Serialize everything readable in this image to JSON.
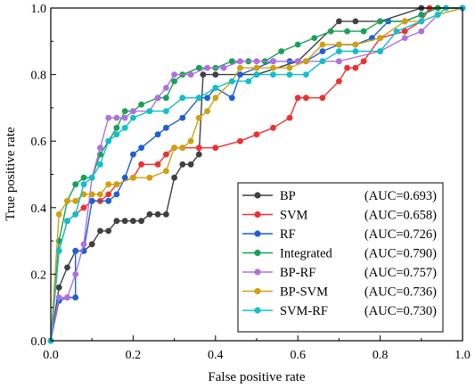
{
  "chart_data": {
    "type": "line",
    "xlabel": "False positive rate",
    "ylabel": "True positive rate",
    "xlim": [
      0,
      1
    ],
    "ylim": [
      0,
      1
    ],
    "x_ticks": [
      "0.0",
      "0.2",
      "0.4",
      "0.6",
      "0.8",
      "1.0"
    ],
    "y_ticks": [
      "0.0",
      "0.2",
      "0.4",
      "0.6",
      "0.8",
      "1.0"
    ],
    "grid": false,
    "legend_position": "bottom-right",
    "series": [
      {
        "name": "BP",
        "auc": "(AUC=0.693)",
        "color": "#404040",
        "points": [
          [
            0,
            0
          ],
          [
            0.02,
            0.16
          ],
          [
            0.04,
            0.22
          ],
          [
            0.06,
            0.27
          ],
          [
            0.08,
            0.27
          ],
          [
            0.1,
            0.29
          ],
          [
            0.12,
            0.33
          ],
          [
            0.14,
            0.33
          ],
          [
            0.16,
            0.36
          ],
          [
            0.18,
            0.36
          ],
          [
            0.2,
            0.36
          ],
          [
            0.22,
            0.36
          ],
          [
            0.24,
            0.38
          ],
          [
            0.26,
            0.38
          ],
          [
            0.28,
            0.38
          ],
          [
            0.3,
            0.49
          ],
          [
            0.32,
            0.53
          ],
          [
            0.34,
            0.53
          ],
          [
            0.36,
            0.56
          ],
          [
            0.37,
            0.8
          ],
          [
            0.4,
            0.8
          ],
          [
            0.5,
            0.8
          ],
          [
            0.6,
            0.84
          ],
          [
            0.7,
            0.96
          ],
          [
            0.74,
            0.96
          ],
          [
            0.8,
            0.96
          ],
          [
            0.9,
            1.0
          ],
          [
            1.0,
            1.0
          ]
        ]
      },
      {
        "name": "SVM",
        "auc": "(AUC=0.658)",
        "color": "#f03030",
        "points": [
          [
            0,
            0
          ],
          [
            0.02,
            0.27
          ],
          [
            0.04,
            0.36
          ],
          [
            0.06,
            0.38
          ],
          [
            0.08,
            0.4
          ],
          [
            0.1,
            0.42
          ],
          [
            0.12,
            0.42
          ],
          [
            0.14,
            0.44
          ],
          [
            0.16,
            0.47
          ],
          [
            0.2,
            0.49
          ],
          [
            0.22,
            0.53
          ],
          [
            0.26,
            0.53
          ],
          [
            0.28,
            0.56
          ],
          [
            0.3,
            0.58
          ],
          [
            0.32,
            0.58
          ],
          [
            0.36,
            0.58
          ],
          [
            0.4,
            0.58
          ],
          [
            0.46,
            0.6
          ],
          [
            0.5,
            0.62
          ],
          [
            0.54,
            0.64
          ],
          [
            0.58,
            0.67
          ],
          [
            0.6,
            0.73
          ],
          [
            0.62,
            0.73
          ],
          [
            0.66,
            0.73
          ],
          [
            0.7,
            0.78
          ],
          [
            0.72,
            0.82
          ],
          [
            0.74,
            0.82
          ],
          [
            0.76,
            0.84
          ],
          [
            0.8,
            0.91
          ],
          [
            0.86,
            0.93
          ],
          [
            0.9,
            0.96
          ],
          [
            0.92,
            1.0
          ],
          [
            1.0,
            1.0
          ]
        ]
      },
      {
        "name": "RF",
        "auc": "(AUC=0.726)",
        "color": "#1f5fd0",
        "points": [
          [
            0,
            0
          ],
          [
            0.02,
            0.12
          ],
          [
            0.04,
            0.13
          ],
          [
            0.06,
            0.13
          ],
          [
            0.06,
            0.27
          ],
          [
            0.08,
            0.27
          ],
          [
            0.1,
            0.42
          ],
          [
            0.14,
            0.42
          ],
          [
            0.16,
            0.44
          ],
          [
            0.18,
            0.49
          ],
          [
            0.2,
            0.56
          ],
          [
            0.22,
            0.58
          ],
          [
            0.26,
            0.62
          ],
          [
            0.28,
            0.64
          ],
          [
            0.32,
            0.67
          ],
          [
            0.36,
            0.73
          ],
          [
            0.38,
            0.73
          ],
          [
            0.4,
            0.76
          ],
          [
            0.44,
            0.73
          ],
          [
            0.46,
            0.8
          ],
          [
            0.5,
            0.82
          ],
          [
            0.54,
            0.84
          ],
          [
            0.58,
            0.84
          ],
          [
            0.62,
            0.84
          ],
          [
            0.66,
            0.87
          ],
          [
            0.7,
            0.89
          ],
          [
            0.74,
            0.89
          ],
          [
            0.78,
            0.91
          ],
          [
            0.82,
            0.96
          ],
          [
            0.86,
            0.96
          ],
          [
            0.9,
            0.98
          ],
          [
            0.94,
            1.0
          ],
          [
            1.0,
            1.0
          ]
        ]
      },
      {
        "name": "Integrated",
        "auc": "(AUC=0.790)",
        "color": "#18a058",
        "points": [
          [
            0,
            0
          ],
          [
            0.02,
            0.3
          ],
          [
            0.04,
            0.42
          ],
          [
            0.06,
            0.47
          ],
          [
            0.08,
            0.49
          ],
          [
            0.1,
            0.49
          ],
          [
            0.12,
            0.56
          ],
          [
            0.14,
            0.6
          ],
          [
            0.16,
            0.64
          ],
          [
            0.18,
            0.69
          ],
          [
            0.2,
            0.69
          ],
          [
            0.22,
            0.71
          ],
          [
            0.26,
            0.73
          ],
          [
            0.28,
            0.73
          ],
          [
            0.3,
            0.78
          ],
          [
            0.32,
            0.8
          ],
          [
            0.36,
            0.82
          ],
          [
            0.4,
            0.82
          ],
          [
            0.44,
            0.84
          ],
          [
            0.48,
            0.84
          ],
          [
            0.52,
            0.84
          ],
          [
            0.56,
            0.87
          ],
          [
            0.6,
            0.89
          ],
          [
            0.64,
            0.91
          ],
          [
            0.68,
            0.93
          ],
          [
            0.72,
            0.93
          ],
          [
            0.76,
            0.93
          ],
          [
            0.8,
            0.96
          ],
          [
            0.86,
            0.96
          ],
          [
            0.9,
            0.98
          ],
          [
            0.94,
            1.0
          ],
          [
            1.0,
            1.0
          ]
        ]
      },
      {
        "name": "BP-RF",
        "auc": "(AUC=0.757)",
        "color": "#b070e0",
        "points": [
          [
            0,
            0
          ],
          [
            0.02,
            0.13
          ],
          [
            0.04,
            0.13
          ],
          [
            0.06,
            0.2
          ],
          [
            0.08,
            0.29
          ],
          [
            0.1,
            0.49
          ],
          [
            0.12,
            0.58
          ],
          [
            0.14,
            0.67
          ],
          [
            0.16,
            0.67
          ],
          [
            0.18,
            0.67
          ],
          [
            0.2,
            0.69
          ],
          [
            0.24,
            0.69
          ],
          [
            0.26,
            0.73
          ],
          [
            0.28,
            0.76
          ],
          [
            0.3,
            0.8
          ],
          [
            0.34,
            0.8
          ],
          [
            0.38,
            0.82
          ],
          [
            0.42,
            0.82
          ],
          [
            0.46,
            0.84
          ],
          [
            0.5,
            0.84
          ],
          [
            0.54,
            0.84
          ],
          [
            0.6,
            0.84
          ],
          [
            0.7,
            0.84
          ],
          [
            0.8,
            0.87
          ],
          [
            0.86,
            0.91
          ],
          [
            0.9,
            0.93
          ],
          [
            0.94,
            0.98
          ],
          [
            1.0,
            1.0
          ]
        ]
      },
      {
        "name": "BP-SVM",
        "auc": "(AUC=0.736)",
        "color": "#d0a010",
        "points": [
          [
            0,
            0
          ],
          [
            0.02,
            0.38
          ],
          [
            0.04,
            0.42
          ],
          [
            0.06,
            0.42
          ],
          [
            0.08,
            0.44
          ],
          [
            0.1,
            0.44
          ],
          [
            0.12,
            0.44
          ],
          [
            0.14,
            0.47
          ],
          [
            0.16,
            0.47
          ],
          [
            0.2,
            0.49
          ],
          [
            0.24,
            0.49
          ],
          [
            0.28,
            0.51
          ],
          [
            0.3,
            0.58
          ],
          [
            0.32,
            0.58
          ],
          [
            0.34,
            0.6
          ],
          [
            0.36,
            0.67
          ],
          [
            0.38,
            0.69
          ],
          [
            0.4,
            0.73
          ],
          [
            0.44,
            0.78
          ],
          [
            0.46,
            0.82
          ],
          [
            0.5,
            0.82
          ],
          [
            0.54,
            0.82
          ],
          [
            0.58,
            0.82
          ],
          [
            0.62,
            0.84
          ],
          [
            0.66,
            0.89
          ],
          [
            0.7,
            0.89
          ],
          [
            0.74,
            0.89
          ],
          [
            0.8,
            0.91
          ],
          [
            0.86,
            0.96
          ],
          [
            0.9,
            0.96
          ],
          [
            0.94,
            0.98
          ],
          [
            1.0,
            1.0
          ]
        ]
      },
      {
        "name": "SVM-RF",
        "auc": "(AUC=0.730)",
        "color": "#10c0c8",
        "points": [
          [
            0,
            0
          ],
          [
            0.02,
            0.27
          ],
          [
            0.04,
            0.36
          ],
          [
            0.06,
            0.38
          ],
          [
            0.08,
            0.47
          ],
          [
            0.1,
            0.49
          ],
          [
            0.12,
            0.53
          ],
          [
            0.14,
            0.6
          ],
          [
            0.16,
            0.62
          ],
          [
            0.18,
            0.64
          ],
          [
            0.2,
            0.67
          ],
          [
            0.24,
            0.69
          ],
          [
            0.28,
            0.69
          ],
          [
            0.32,
            0.73
          ],
          [
            0.36,
            0.73
          ],
          [
            0.4,
            0.76
          ],
          [
            0.44,
            0.78
          ],
          [
            0.48,
            0.78
          ],
          [
            0.5,
            0.8
          ],
          [
            0.54,
            0.8
          ],
          [
            0.58,
            0.8
          ],
          [
            0.62,
            0.8
          ],
          [
            0.66,
            0.84
          ],
          [
            0.7,
            0.87
          ],
          [
            0.74,
            0.87
          ],
          [
            0.8,
            0.87
          ],
          [
            0.84,
            0.93
          ],
          [
            0.9,
            0.96
          ],
          [
            0.94,
            0.98
          ],
          [
            0.96,
            1.0
          ],
          [
            1.0,
            1.0
          ]
        ]
      }
    ]
  }
}
